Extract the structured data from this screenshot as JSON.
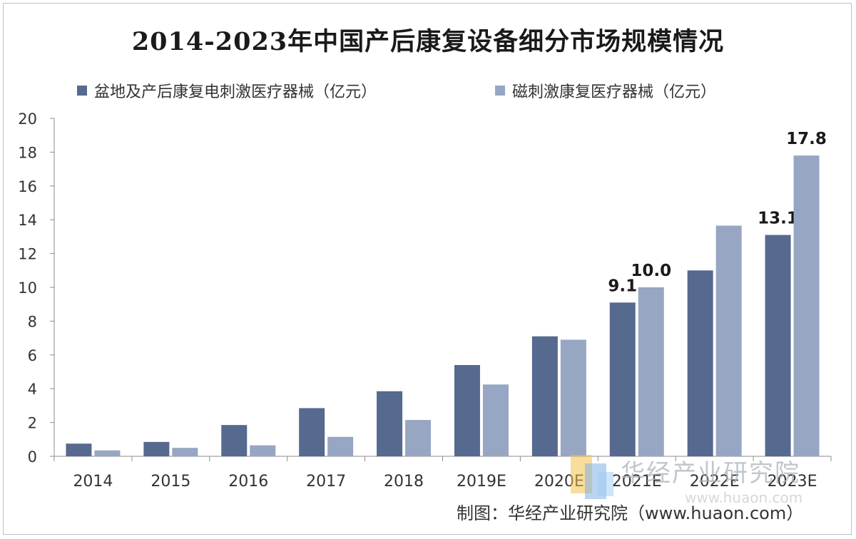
{
  "chart_data": {
    "type": "bar",
    "title": "2014-2023年中国产后康复设备细分市场规模情况",
    "categories": [
      "2014",
      "2015",
      "2016",
      "2017",
      "2018",
      "2019E",
      "2020E",
      "2021E",
      "2022E",
      "2023E"
    ],
    "series": [
      {
        "name": "盆地及产后康复电刺激医疗器械（亿元）",
        "color": "#56698f",
        "values": [
          0.75,
          0.85,
          1.85,
          2.85,
          3.85,
          5.4,
          7.1,
          9.1,
          11.0,
          13.1
        ],
        "data_labels": [
          "",
          "",
          "",
          "",
          "",
          "",
          "",
          "9.1",
          "",
          "13.1"
        ]
      },
      {
        "name": "磁刺激康复医疗器械（亿元）",
        "color": "#97a6c2",
        "values": [
          0.35,
          0.5,
          0.65,
          1.15,
          2.15,
          4.25,
          6.9,
          10.0,
          13.65,
          17.8
        ],
        "data_labels": [
          "",
          "",
          "",
          "",
          "",
          "",
          "",
          "10.0",
          "",
          "17.8"
        ]
      }
    ],
    "ylim": [
      0,
      20
    ],
    "yticks": [
      "0",
      "2",
      "4",
      "6",
      "8",
      "10",
      "12",
      "14",
      "16",
      "18",
      "20"
    ],
    "xlabel": "",
    "ylabel": "",
    "grid": false,
    "legend_position": "top"
  },
  "source": "制图：华经产业研究院（www.huaon.com）",
  "watermark": {
    "text": "华经产业研究院",
    "url": "www.huaon.com"
  }
}
